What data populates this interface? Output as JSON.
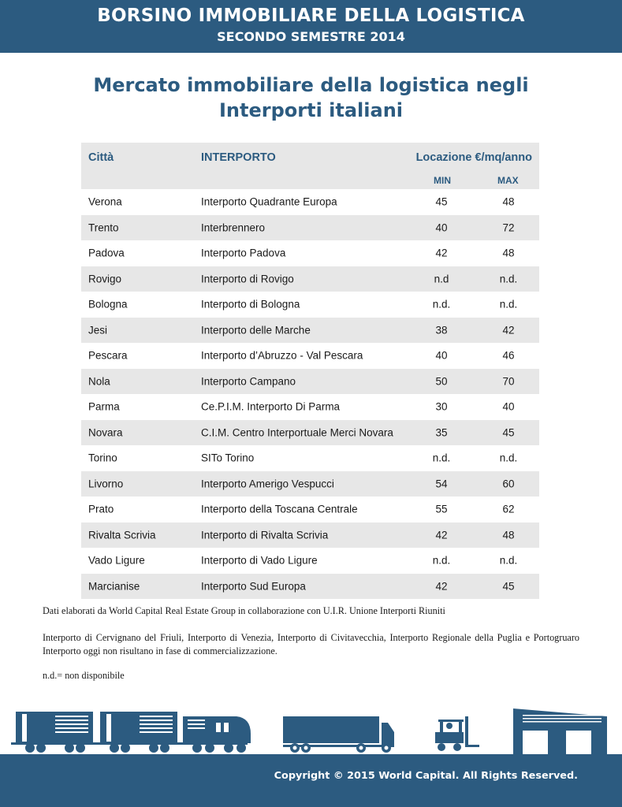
{
  "header": {
    "title": "BORSINO IMMOBILIARE DELLA LOGISTICA",
    "subtitle": "SECONDO SEMESTRE 2014"
  },
  "document": {
    "title_line1": "Mercato immobiliare della logistica negli",
    "title_line2": "Interporti italiani"
  },
  "table": {
    "headers": {
      "city": "Città",
      "interporto": "INTERPORTO",
      "location": "Locazione €/mq/anno",
      "min": "MIN",
      "max": "MAX"
    },
    "rows": [
      {
        "city": "Verona",
        "interporto": "Interporto Quadrante Europa",
        "min": "45",
        "max": "48"
      },
      {
        "city": "Trento",
        "interporto": "Interbrennero",
        "min": "40",
        "max": "72"
      },
      {
        "city": "Padova",
        "interporto": "Interporto Padova",
        "min": "42",
        "max": "48"
      },
      {
        "city": "Rovigo",
        "interporto": "Interporto di Rovigo",
        "min": "n.d",
        "max": "n.d."
      },
      {
        "city": "Bologna",
        "interporto": "Interporto di Bologna",
        "min": "n.d.",
        "max": "n.d."
      },
      {
        "city": "Jesi",
        "interporto": "Interporto delle Marche",
        "min": "38",
        "max": "42"
      },
      {
        "city": "Pescara",
        "interporto": "Interporto d’Abruzzo - Val Pescara",
        "min": "40",
        "max": "46"
      },
      {
        "city": "Nola",
        "interporto": "Interporto Campano",
        "min": "50",
        "max": "70"
      },
      {
        "city": "Parma",
        "interporto": "Ce.P.I.M. Interporto Di Parma",
        "min": "30",
        "max": "40"
      },
      {
        "city": "Novara",
        "interporto": "C.I.M. Centro Interportuale Merci Novara",
        "min": "35",
        "max": "45"
      },
      {
        "city": "Torino",
        "interporto": "SITo  Torino",
        "min": "n.d.",
        "max": "n.d."
      },
      {
        "city": "Livorno",
        "interporto": "Interporto Amerigo Vespucci",
        "min": "54",
        "max": "60"
      },
      {
        "city": "Prato",
        "interporto": "Interporto della Toscana Centrale",
        "min": "55",
        "max": "62"
      },
      {
        "city": "Rivalta Scrivia",
        "interporto": "Interporto di Rivalta Scrivia",
        "min": "42",
        "max": "48"
      },
      {
        "city": "Vado Ligure",
        "interporto": "Interporto di Vado Ligure",
        "min": "n.d.",
        "max": "n.d."
      },
      {
        "city": "Marcianise",
        "interporto": "Interporto Sud Europa",
        "min": "42",
        "max": "45"
      }
    ]
  },
  "notes": {
    "source": "Dati elaborati da World Capital Real Estate Group in collaborazione con U.I.R. Unione Interporti Riuniti",
    "inactive": "Interporto di Cervignano del Friuli, Interporto di Venezia, Interporto di Civitavecchia, Interporto Regionale della Puglia e Portogruaro Interporto oggi non risultano in fase di commercializzazione.",
    "legend": "n.d.= non disponibile"
  },
  "illustration": {
    "icons": [
      "train-wagon-icon",
      "train-wagon-icon",
      "locomotive-icon",
      "truck-icon",
      "forklift-icon",
      "warehouse-icon"
    ]
  },
  "footer": {
    "copyright": "Copyright © 2015 World Capital. All Rights Reserved."
  },
  "colors": {
    "brand_blue": "#2c5b80",
    "row_shade": "#e7e7e7"
  }
}
